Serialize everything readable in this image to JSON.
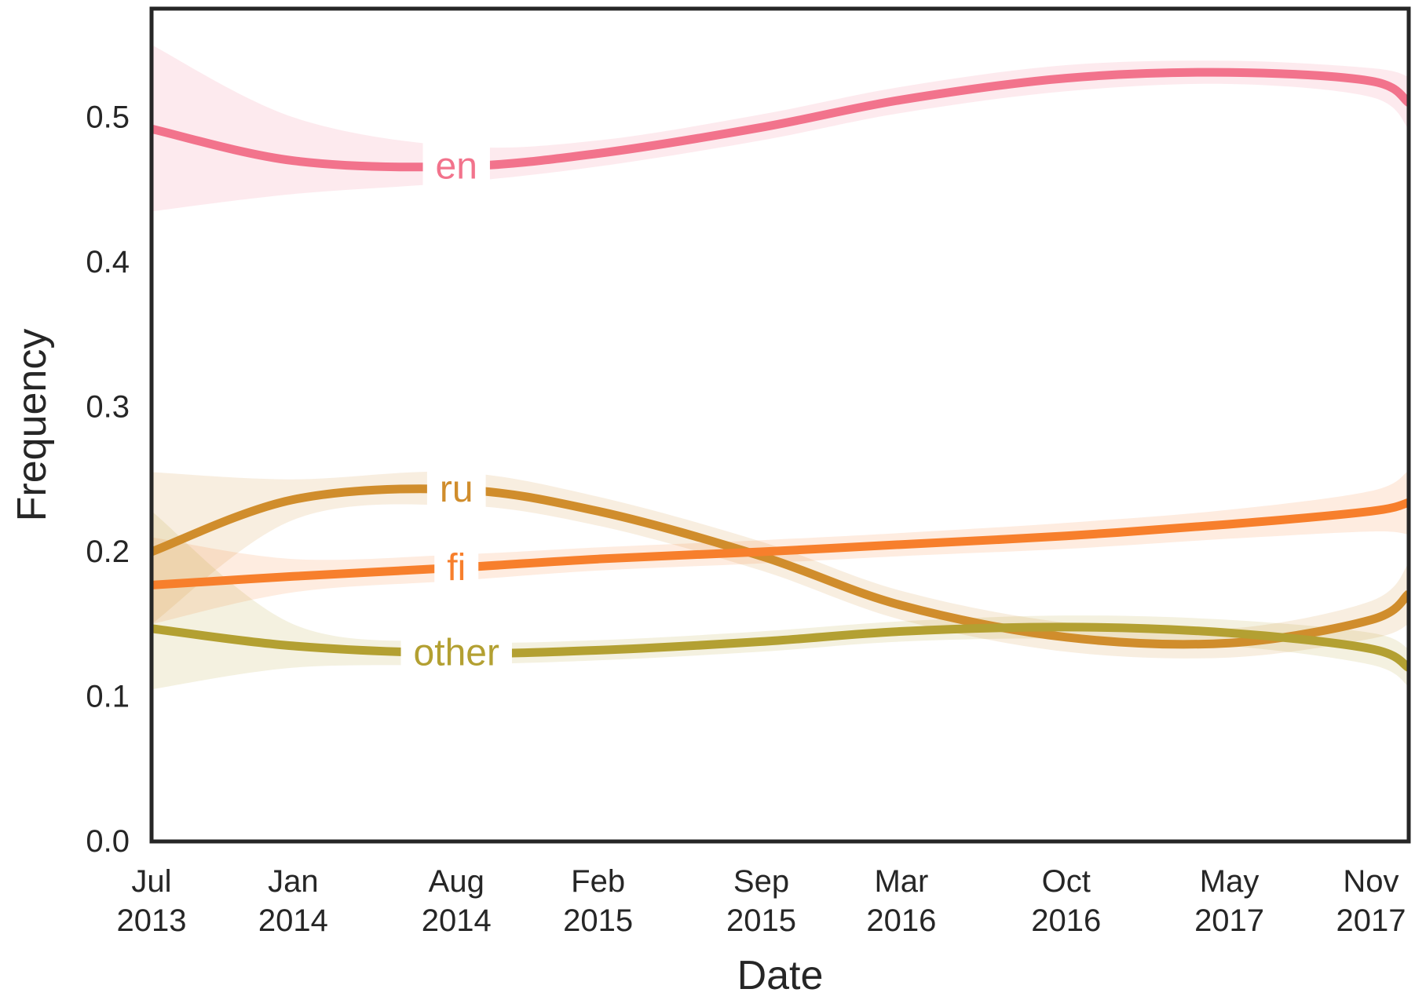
{
  "chart_data": {
    "type": "line",
    "title": "",
    "xlabel": "Date",
    "ylabel": "Frequency",
    "ylim": [
      0.0,
      0.575
    ],
    "xlim": [
      "2013-07-01",
      "2017-12-20"
    ],
    "grid": false,
    "legend": "inline labels",
    "y_ticks": [
      0.0,
      0.1,
      0.2,
      0.3,
      0.4,
      0.5
    ],
    "y_tick_labels": [
      "0.0",
      "0.1",
      "0.2",
      "0.3",
      "0.4",
      "0.5"
    ],
    "x_ticks": [
      "2013-07-01",
      "2014-01-01",
      "2014-08-01",
      "2015-02-01",
      "2015-09-01",
      "2016-03-01",
      "2016-10-01",
      "2017-05-01",
      "2017-11-01"
    ],
    "x_tick_labels": [
      [
        "Jul",
        "2013"
      ],
      [
        "Jan",
        "2014"
      ],
      [
        "Aug",
        "2014"
      ],
      [
        "Feb",
        "2015"
      ],
      [
        "Sep",
        "2015"
      ],
      [
        "Mar",
        "2016"
      ],
      [
        "Oct",
        "2016"
      ],
      [
        "May",
        "2017"
      ],
      [
        "Nov",
        "2017"
      ]
    ],
    "x": [
      "2013-07-01",
      "2014-01-01",
      "2014-08-01",
      "2015-02-01",
      "2015-09-01",
      "2016-03-01",
      "2016-10-01",
      "2017-05-01",
      "2017-11-01",
      "2017-12-20"
    ],
    "series": [
      {
        "name": "en",
        "color": "#f2738c",
        "values": [
          0.492,
          0.47,
          0.466,
          0.475,
          0.493,
          0.512,
          0.527,
          0.531,
          0.525,
          0.51
        ],
        "lower": [
          0.435,
          0.447,
          0.455,
          0.466,
          0.484,
          0.503,
          0.518,
          0.523,
          0.514,
          0.492
        ],
        "upper": [
          0.55,
          0.5,
          0.48,
          0.484,
          0.502,
          0.521,
          0.536,
          0.539,
          0.534,
          0.528
        ],
        "label_at": "2014-08-01"
      },
      {
        "name": "ru",
        "color": "#d08d2c",
        "values": [
          0.2,
          0.236,
          0.243,
          0.228,
          0.197,
          0.163,
          0.141,
          0.137,
          0.153,
          0.171
        ],
        "lower": [
          0.15,
          0.222,
          0.232,
          0.218,
          0.187,
          0.153,
          0.131,
          0.127,
          0.14,
          0.15
        ],
        "upper": [
          0.255,
          0.25,
          0.255,
          0.238,
          0.207,
          0.173,
          0.151,
          0.147,
          0.166,
          0.192
        ],
        "label_at": "2014-08-01"
      },
      {
        "name": "fi",
        "color": "#f77f2c",
        "values": [
          0.177,
          0.183,
          0.189,
          0.195,
          0.2,
          0.205,
          0.211,
          0.219,
          0.228,
          0.234
        ],
        "lower": [
          0.15,
          0.172,
          0.18,
          0.187,
          0.192,
          0.197,
          0.202,
          0.209,
          0.214,
          0.212
        ],
        "upper": [
          0.21,
          0.195,
          0.198,
          0.203,
          0.208,
          0.213,
          0.22,
          0.229,
          0.242,
          0.256
        ],
        "label_at": "2014-08-01"
      },
      {
        "name": "other",
        "color": "#b3a032",
        "values": [
          0.147,
          0.135,
          0.13,
          0.132,
          0.138,
          0.145,
          0.148,
          0.144,
          0.133,
          0.12
        ],
        "lower": [
          0.105,
          0.12,
          0.122,
          0.125,
          0.131,
          0.138,
          0.14,
          0.135,
          0.122,
          0.107
        ],
        "upper": [
          0.228,
          0.15,
          0.138,
          0.139,
          0.145,
          0.152,
          0.156,
          0.153,
          0.144,
          0.133
        ],
        "label_at": "2014-08-01"
      }
    ]
  }
}
